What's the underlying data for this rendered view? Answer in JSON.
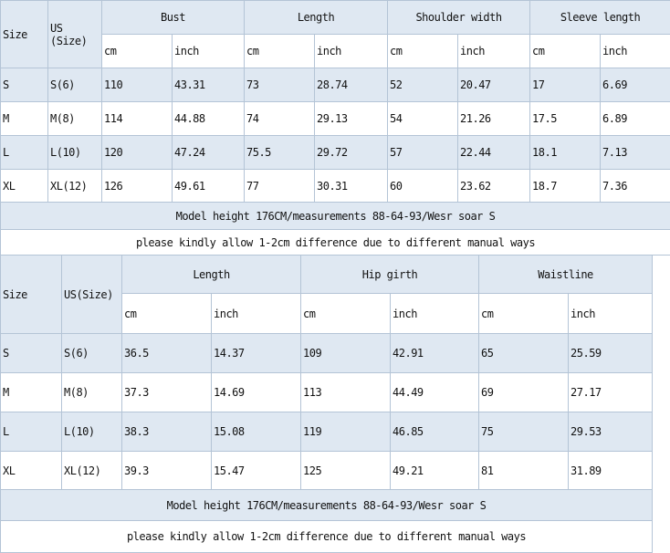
{
  "tables": [
    {
      "size_label": "Size",
      "us_label": "US (Size)",
      "groups": [
        "Bust",
        "Length",
        "Shoulder width",
        "Sleeve length"
      ],
      "units": [
        "cm",
        "inch",
        "cm",
        "inch",
        "cm",
        "inch",
        "cm",
        "inch"
      ],
      "rows": [
        [
          "S",
          "S(6)",
          "110",
          "43.31",
          "73",
          "28.74",
          "52",
          "20.47",
          "17",
          "6.69"
        ],
        [
          "M",
          "M(8)",
          "114",
          "44.88",
          "74",
          "29.13",
          "54",
          "21.26",
          "17.5",
          "6.89"
        ],
        [
          "L",
          "L(10)",
          "120",
          "47.24",
          "75.5",
          "29.72",
          "57",
          "22.44",
          "18.1",
          "7.13"
        ],
        [
          "XL",
          "XL(12)",
          "126",
          "49.61",
          "77",
          "30.31",
          "60",
          "23.62",
          "18.7",
          "7.36"
        ]
      ],
      "notes": [
        "Model height 176CM/measurements 88-64-93/Wesr soar S",
        "please kindly allow 1-2cm difference due to different manual ways"
      ]
    },
    {
      "size_label": "Size",
      "us_label": "US(Size)",
      "groups": [
        "Length",
        "Hip girth",
        "Waistline"
      ],
      "units": [
        "cm",
        "inch",
        "cm",
        "inch",
        "cm",
        "inch"
      ],
      "rows": [
        [
          "S",
          "S(6)",
          "36.5",
          "14.37",
          "109",
          "42.91",
          "65",
          "25.59"
        ],
        [
          "M",
          "M(8)",
          "37.3",
          "14.69",
          "113",
          "44.49",
          "69",
          "27.17"
        ],
        [
          "L",
          "L(10)",
          "38.3",
          "15.08",
          "119",
          "46.85",
          "75",
          "29.53"
        ],
        [
          "XL",
          "XL(12)",
          "39.3",
          "15.47",
          "125",
          "49.21",
          "81",
          "31.89"
        ]
      ],
      "notes": [
        "Model height 176CM/measurements 88-64-93/Wesr soar S",
        "please kindly allow 1-2cm difference due to different manual ways"
      ]
    }
  ]
}
